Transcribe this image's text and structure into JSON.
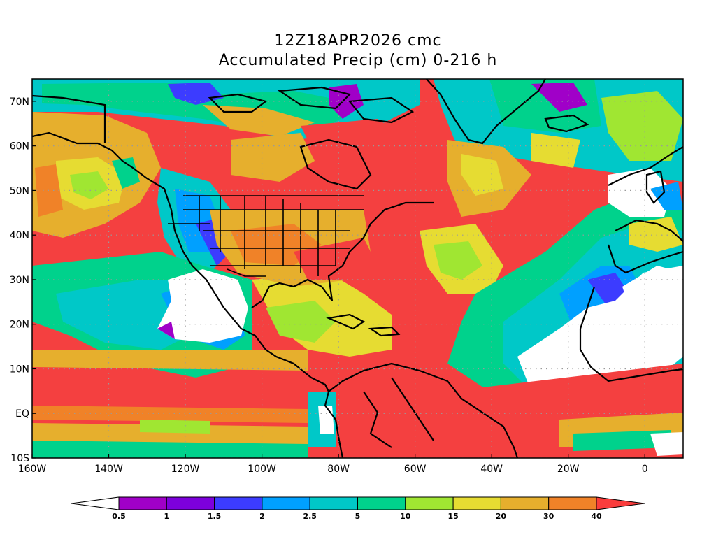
{
  "title": {
    "line1": "12Z18APR2026 cmc",
    "line2": "Accumulated Precip (cm) 0-216 h"
  },
  "map": {
    "projection": "latlon",
    "lon_range": [
      -160,
      10
    ],
    "lat_range": [
      -10,
      75
    ],
    "y_ticks": [
      {
        "lat": 70,
        "label": "70N"
      },
      {
        "lat": 60,
        "label": "60N"
      },
      {
        "lat": 50,
        "label": "50N"
      },
      {
        "lat": 40,
        "label": "40N"
      },
      {
        "lat": 30,
        "label": "30N"
      },
      {
        "lat": 20,
        "label": "20N"
      },
      {
        "lat": 10,
        "label": "10N"
      },
      {
        "lat": 0,
        "label": "EQ"
      },
      {
        "lat": -10,
        "label": "10S"
      }
    ],
    "x_ticks": [
      {
        "lon": -160,
        "label": "160W"
      },
      {
        "lon": -140,
        "label": "140W"
      },
      {
        "lon": -120,
        "label": "120W"
      },
      {
        "lon": -100,
        "label": "100W"
      },
      {
        "lon": -80,
        "label": "80W"
      },
      {
        "lon": -60,
        "label": "60W"
      },
      {
        "lon": -40,
        "label": "40W"
      },
      {
        "lon": -20,
        "label": "20W"
      },
      {
        "lon": 0,
        "label": "0"
      }
    ],
    "grid": "dotted"
  },
  "colorbar": {
    "levels": [
      "0.5",
      "1",
      "1.5",
      "2",
      "2.5",
      "5",
      "10",
      "15",
      "20",
      "30",
      "40"
    ],
    "colors": [
      "#ffffff",
      "#a000c8",
      "#7d00dc",
      "#3c3cff",
      "#00a0ff",
      "#00c8c8",
      "#00d28c",
      "#a0e632",
      "#e6dc32",
      "#e6af2d",
      "#f08228",
      "#fa3c3c"
    ]
  },
  "colors": {
    "ocean_base": "#f44040",
    "land_outline": "#000000"
  }
}
